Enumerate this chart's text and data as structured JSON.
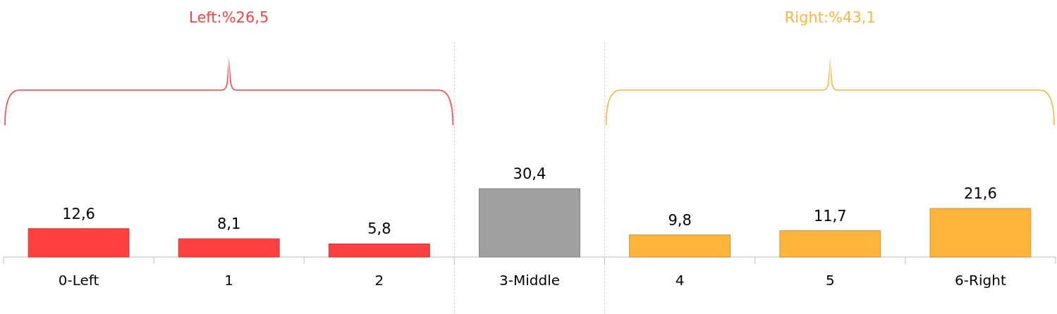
{
  "chart_data": {
    "type": "bar",
    "categories": [
      "0-Left",
      "1",
      "2",
      "3-Middle",
      "4",
      "5",
      "6-Right"
    ],
    "values": [
      12.6,
      8.1,
      5.8,
      30.4,
      9.8,
      11.7,
      21.6
    ],
    "value_labels": [
      "12,6",
      "8,1",
      "5,8",
      "30,4",
      "9,8",
      "11,7",
      "21,6"
    ],
    "colors": [
      "#ff4040",
      "#ff4040",
      "#ff4040",
      "#a0a0a0",
      "#ffb43c",
      "#ffb43c",
      "#ffb43c"
    ],
    "annotations": [
      "Left:%26,5",
      "Right:%43,1"
    ]
  }
}
